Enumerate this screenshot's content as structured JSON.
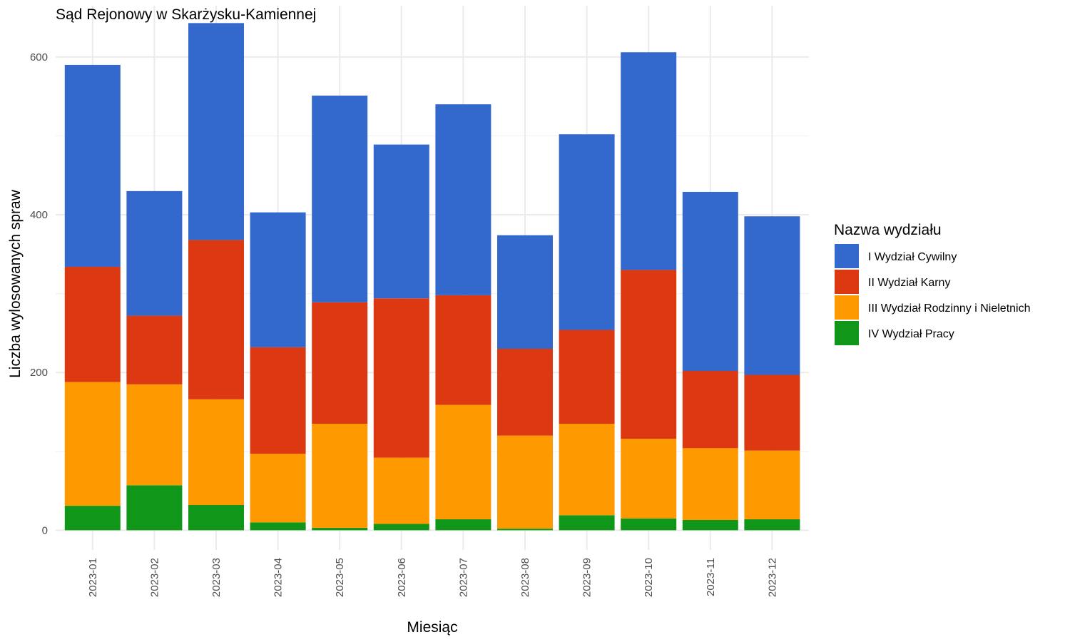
{
  "chart_data": {
    "type": "bar",
    "stacked": true,
    "title": "Sąd Rejonowy w Skarżysku-Kamiennej",
    "xlabel": "Miesiąc",
    "ylabel": "Liczba wylosowanych spraw",
    "ylim": [
      -25,
      665
    ],
    "yticks": [
      0,
      200,
      400,
      600
    ],
    "grid": true,
    "legend_placement": "right",
    "legend_title": "Nazwa wydziału",
    "categories": [
      "2023-01",
      "2023-02",
      "2023-03",
      "2023-04",
      "2023-05",
      "2023-06",
      "2023-07",
      "2023-08",
      "2023-09",
      "2023-10",
      "2023-11",
      "2023-12"
    ],
    "series": [
      {
        "name": "I Wydział Cywilny",
        "color": "#3368CC",
        "values": [
          256,
          158,
          275,
          171,
          262,
          195,
          242,
          144,
          248,
          276,
          227,
          201
        ]
      },
      {
        "name": "II Wydział Karny",
        "color": "#DC3912",
        "values": [
          146,
          87,
          202,
          135,
          154,
          202,
          139,
          110,
          119,
          214,
          98,
          96
        ]
      },
      {
        "name": "III Wydział Rodzinny i Nieletnich",
        "color": "#FF9900",
        "values": [
          157,
          128,
          134,
          87,
          132,
          84,
          145,
          118,
          116,
          101,
          91,
          87
        ]
      },
      {
        "name": "IV Wydział Pracy",
        "color": "#109618",
        "values": [
          31,
          57,
          32,
          10,
          3,
          8,
          14,
          2,
          19,
          15,
          13,
          14
        ]
      }
    ]
  }
}
